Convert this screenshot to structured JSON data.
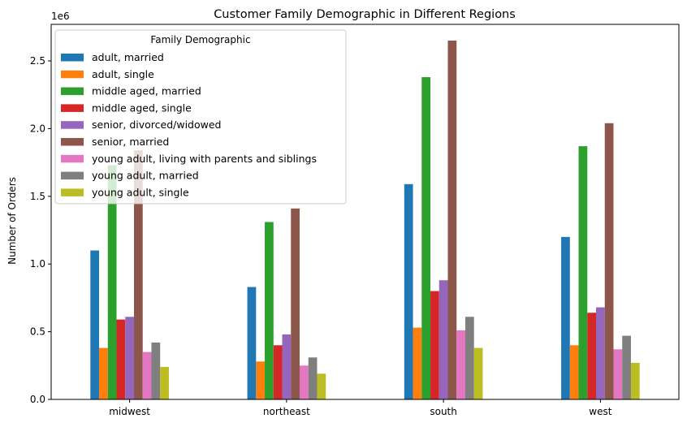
{
  "chart_data": {
    "type": "bar",
    "title": "Customer Family Demographic in Different Regions",
    "xlabel": "",
    "ylabel": "Number of Orders",
    "y_offset_label": "1e6",
    "ylim": [
      0,
      2.77
    ],
    "y_unit_multiplier": 1000000,
    "yticks": [
      "0.0",
      "0.5",
      "1.0",
      "1.5",
      "2.0",
      "2.5"
    ],
    "categories": [
      "midwest",
      "northeast",
      "south",
      "west"
    ],
    "legend": {
      "title": "Family Demographic",
      "position": "upper-left"
    },
    "grid": false,
    "series": [
      {
        "name": "adult, married",
        "color": "#1f77b4",
        "values": [
          1.1,
          0.83,
          1.59,
          1.2
        ]
      },
      {
        "name": "adult, single",
        "color": "#ff7f0e",
        "values": [
          0.38,
          0.28,
          0.53,
          0.4
        ]
      },
      {
        "name": "middle aged, married",
        "color": "#2ca02c",
        "values": [
          1.73,
          1.31,
          2.38,
          1.87
        ]
      },
      {
        "name": "middle aged, single",
        "color": "#d62728",
        "values": [
          0.59,
          0.4,
          0.8,
          0.64
        ]
      },
      {
        "name": "senior, divorced/widowed",
        "color": "#9467bd",
        "values": [
          0.61,
          0.48,
          0.88,
          0.68
        ]
      },
      {
        "name": "senior, married",
        "color": "#8c564b",
        "values": [
          1.84,
          1.41,
          2.65,
          2.04
        ]
      },
      {
        "name": "young adult, living with parents and siblings",
        "color": "#e377c2",
        "values": [
          0.35,
          0.25,
          0.51,
          0.37
        ]
      },
      {
        "name": "young adult, married",
        "color": "#7f7f7f",
        "values": [
          0.42,
          0.31,
          0.61,
          0.47
        ]
      },
      {
        "name": "young adult, single",
        "color": "#bcbd22",
        "values": [
          0.24,
          0.19,
          0.38,
          0.27
        ]
      }
    ]
  }
}
